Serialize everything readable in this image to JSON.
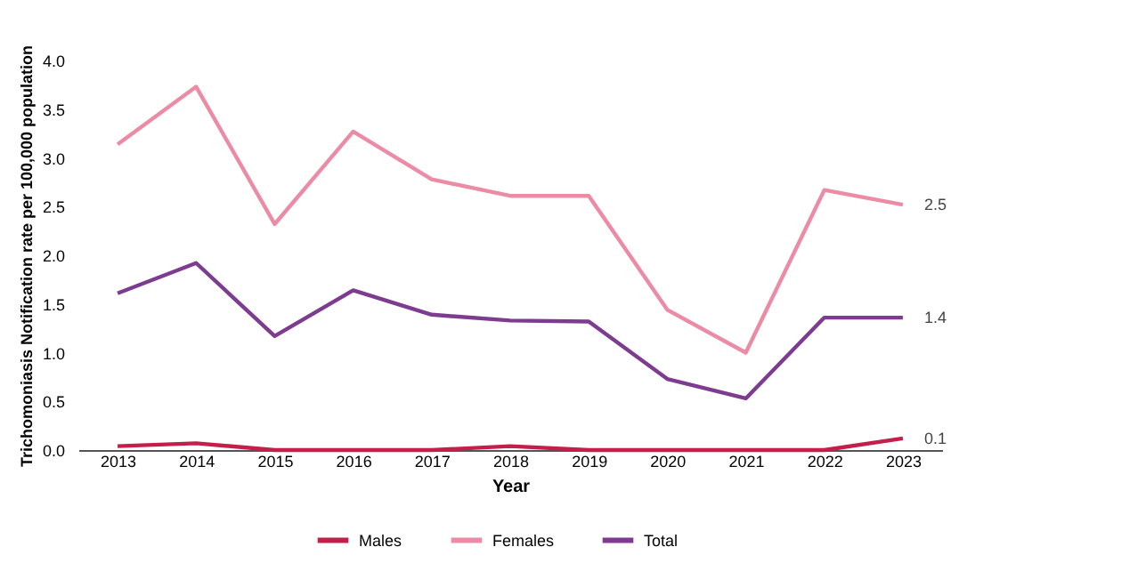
{
  "chart_data": {
    "type": "line",
    "xlabel": "Year",
    "ylabel": "Trichomoniasis Notification rate per 100,000 population",
    "categories": [
      "2013",
      "2014",
      "2015",
      "2016",
      "2017",
      "2018",
      "2019",
      "2020",
      "2021",
      "2022",
      "2023"
    ],
    "series": [
      {
        "name": "Males",
        "color": "#c41e4a",
        "values": [
          0.04,
          0.07,
          0,
          0,
          0,
          0.04,
          0,
          0,
          0,
          0,
          0.12
        ],
        "value_labels": [
          null,
          null,
          null,
          null,
          null,
          null,
          null,
          null,
          null,
          null,
          "0.1"
        ]
      },
      {
        "name": "Females",
        "color": "#ec8ba5",
        "values": [
          3.14,
          3.73,
          2.32,
          3.27,
          2.78,
          2.61,
          2.61,
          1.44,
          1.0,
          2.67,
          2.52
        ],
        "value_labels": [
          null,
          null,
          null,
          null,
          null,
          null,
          null,
          null,
          null,
          null,
          "2.5"
        ]
      },
      {
        "name": "Total",
        "color": "#7d3c8f",
        "values": [
          1.61,
          1.92,
          1.17,
          1.64,
          1.39,
          1.33,
          1.32,
          0.73,
          0.53,
          1.36,
          1.36
        ],
        "value_labels": [
          null,
          null,
          null,
          null,
          null,
          null,
          null,
          null,
          null,
          null,
          "1.4"
        ]
      }
    ],
    "ylim": [
      0,
      4.0
    ],
    "yticks": [
      {
        "value": 0,
        "label": "0.0"
      },
      {
        "value": 0.5,
        "label": "0.5"
      },
      {
        "value": 1,
        "label": "1.0"
      },
      {
        "value": 1.5,
        "label": "1.5"
      },
      {
        "value": 2,
        "label": "2.0"
      },
      {
        "value": 2.5,
        "label": "2.5"
      },
      {
        "value": 3,
        "label": "3.0"
      },
      {
        "value": 3.5,
        "label": "3.5"
      },
      {
        "value": 4,
        "label": "4.0"
      }
    ],
    "grid": false,
    "legend": "bottom",
    "marker": "none",
    "line_style": "solid"
  }
}
